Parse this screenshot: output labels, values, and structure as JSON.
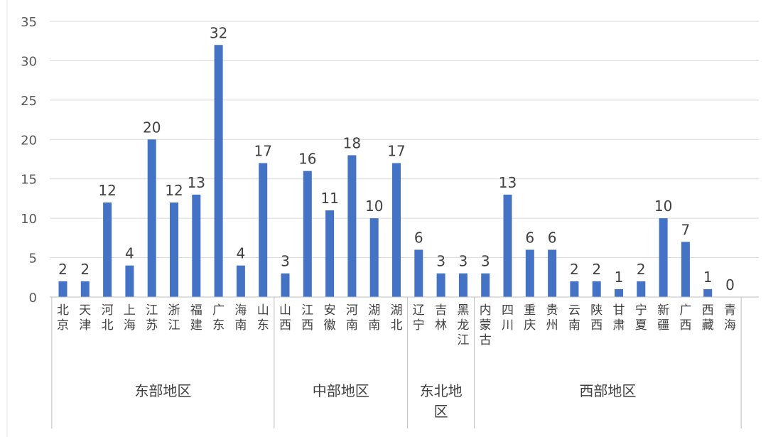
{
  "chart_data": {
    "type": "bar",
    "ylim": [
      0,
      35
    ],
    "yticks": [
      0,
      5,
      10,
      15,
      20,
      25,
      30,
      35
    ],
    "grid": true,
    "bar_color": "#4472C4",
    "grid_color": "#d9d9d9",
    "categories": [
      "北京",
      "天津",
      "河北",
      "上海",
      "江苏",
      "浙江",
      "福建",
      "广东",
      "海南",
      "山东",
      "山西",
      "江西",
      "安徽",
      "河南",
      "湖南",
      "湖北",
      "辽宁",
      "吉林",
      "黑龙江",
      "内蒙古",
      "四川",
      "重庆",
      "贵州",
      "云南",
      "陕西",
      "甘肃",
      "宁夏",
      "新疆",
      "广西",
      "西藏",
      "青海"
    ],
    "values": [
      2,
      2,
      12,
      4,
      20,
      12,
      13,
      32,
      4,
      17,
      3,
      16,
      11,
      18,
      10,
      17,
      6,
      3,
      3,
      3,
      13,
      6,
      6,
      2,
      2,
      1,
      2,
      10,
      7,
      1,
      0
    ],
    "groups": [
      {
        "name": "东部地区",
        "lines": [
          "东部地区"
        ],
        "start": 0,
        "end": 9
      },
      {
        "name": "中部地区",
        "lines": [
          "中部地区"
        ],
        "start": 10,
        "end": 15
      },
      {
        "name": "东北地区",
        "lines": [
          "东北地",
          "区"
        ],
        "start": 16,
        "end": 18
      },
      {
        "name": "西部地区",
        "lines": [
          "西部地区"
        ],
        "start": 19,
        "end": 30
      }
    ]
  }
}
